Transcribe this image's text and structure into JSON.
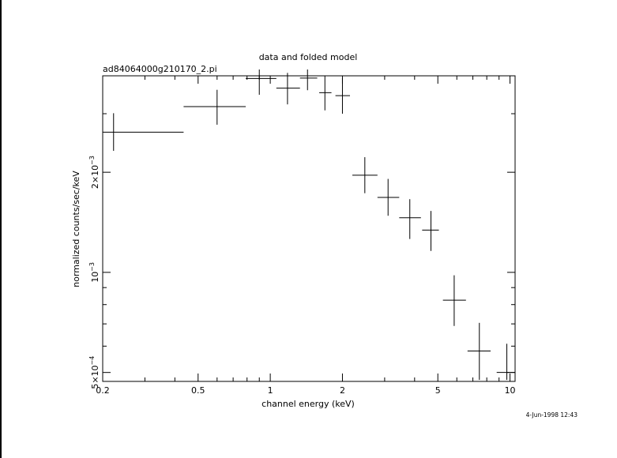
{
  "chart_data": {
    "type": "scatter",
    "title": "data and folded model",
    "subtitle": "ad84064000g210170_2.pi",
    "xlabel": "channel energy (keV)",
    "ylabel": "normalized counts/sec/keV",
    "timestamp": "4-Jun-1998 12:43",
    "x_scale": "log",
    "y_scale": "log",
    "xlim": [
      0.2,
      10.5
    ],
    "ylim": [
      0.00047,
      0.0039
    ],
    "x_ticks": [
      {
        "value": 0.2,
        "label": "0.2"
      },
      {
        "value": 0.5,
        "label": "0.5"
      },
      {
        "value": 1,
        "label": "1"
      },
      {
        "value": 2,
        "label": "2"
      },
      {
        "value": 5,
        "label": "5"
      },
      {
        "value": 10,
        "label": "10"
      }
    ],
    "y_ticks": [
      {
        "value": 0.0005,
        "mant": "5×10",
        "exp": "−4"
      },
      {
        "value": 0.001,
        "mant": "10",
        "exp": "−3"
      },
      {
        "value": 0.002,
        "mant": "2×10",
        "exp": "−3"
      }
    ],
    "points": [
      {
        "x": 0.222,
        "xlo": 0.2,
        "xhi": 0.435,
        "y": 0.00264,
        "ylo": 0.00232,
        "yhi": 0.00301
      },
      {
        "x": 0.6,
        "xlo": 0.435,
        "xhi": 0.79,
        "y": 0.00315,
        "ylo": 0.00278,
        "yhi": 0.00354
      },
      {
        "x": 0.9,
        "xlo": 0.79,
        "xhi": 1.06,
        "y": 0.00383,
        "ylo": 0.00342,
        "yhi": 0.00427
      },
      {
        "x": 1.18,
        "xlo": 1.06,
        "xhi": 1.33,
        "y": 0.00358,
        "ylo": 0.0032,
        "yhi": 0.00398
      },
      {
        "x": 1.43,
        "xlo": 1.33,
        "xhi": 1.57,
        "y": 0.00384,
        "ylo": 0.00353,
        "yhi": 0.00425
      },
      {
        "x": 1.69,
        "xlo": 1.6,
        "xhi": 1.8,
        "y": 0.00347,
        "ylo": 0.00307,
        "yhi": 0.00391
      },
      {
        "x": 2.0,
        "xlo": 1.87,
        "xhi": 2.15,
        "y": 0.0034,
        "ylo": 0.003,
        "yhi": 0.00384
      },
      {
        "x": 2.48,
        "xlo": 2.2,
        "xhi": 2.8,
        "y": 0.00196,
        "ylo": 0.00173,
        "yhi": 0.00222
      },
      {
        "x": 3.1,
        "xlo": 2.8,
        "xhi": 3.45,
        "y": 0.00168,
        "ylo": 0.00148,
        "yhi": 0.00191
      },
      {
        "x": 3.82,
        "xlo": 3.45,
        "xhi": 4.25,
        "y": 0.00146,
        "ylo": 0.00126,
        "yhi": 0.00166
      },
      {
        "x": 4.68,
        "xlo": 4.3,
        "xhi": 5.05,
        "y": 0.00134,
        "ylo": 0.00116,
        "yhi": 0.00153
      },
      {
        "x": 5.85,
        "xlo": 5.25,
        "xhi": 6.55,
        "y": 0.000825,
        "ylo": 0.00069,
        "yhi": 0.00098
      },
      {
        "x": 7.45,
        "xlo": 6.65,
        "xhi": 8.3,
        "y": 0.00058,
        "ylo": 0.000475,
        "yhi": 0.000705
      },
      {
        "x": 9.7,
        "xlo": 8.8,
        "xhi": 10.5,
        "y": 0.0005,
        "ylo": 0.000475,
        "yhi": 0.00061
      }
    ]
  }
}
